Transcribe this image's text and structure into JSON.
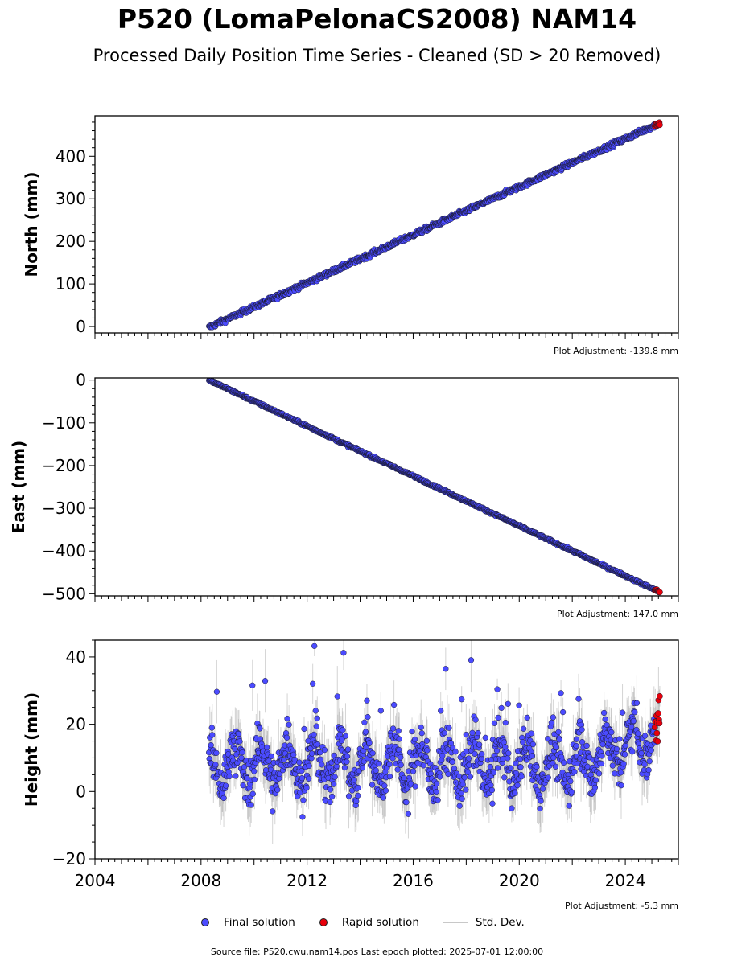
{
  "header": {
    "title": "P520 (LomaPelonaCS2008) NAM14",
    "subtitle": "Processed Daily Position Time Series - Cleaned (SD > 20 Removed)"
  },
  "legend": {
    "final_label": "Final solution",
    "rapid_label": "Rapid solution",
    "std_label": "Std. Dev."
  },
  "footer": {
    "source": "Source file: P520.cwu.nam14.pos  Last epoch plotted: 2025-07-01 12:00:00"
  },
  "colors": {
    "final": "#4b4bff",
    "rapid": "#e8000b",
    "std": "#b0b0b0",
    "edge": "#1a1a2e"
  },
  "chart_data": [
    {
      "type": "scatter",
      "ylabel": "North (mm)",
      "adjustment": "Plot Adjustment: -139.8 mm",
      "xlim": [
        2004,
        2026
      ],
      "ylim": [
        -15,
        495
      ],
      "yticks": [
        0,
        100,
        200,
        300,
        400
      ],
      "start_year": 2008.3,
      "end_year": 2025.3,
      "start_value": -2,
      "end_value": 478,
      "scatter": 4,
      "rapid_start": 2025.1
    },
    {
      "type": "scatter",
      "ylabel": "East (mm)",
      "adjustment": "Plot Adjustment: 147.0 mm",
      "xlim": [
        2004,
        2026
      ],
      "ylim": [
        -505,
        5
      ],
      "yticks": [
        0,
        -100,
        -200,
        -300,
        -400,
        -500
      ],
      "start_year": 2008.3,
      "end_year": 2025.3,
      "start_value": 0,
      "end_value": -496,
      "scatter": 2,
      "rapid_start": 2025.1
    },
    {
      "type": "scatter",
      "ylabel": "Height (mm)",
      "adjustment": "Plot Adjustment: -5.3 mm",
      "xlim": [
        2004,
        2026
      ],
      "ylim": [
        -20,
        45
      ],
      "yticks": [
        -20,
        0,
        20,
        40
      ],
      "xticks": [
        2004,
        2008,
        2012,
        2016,
        2020,
        2024
      ],
      "start_year": 2008.3,
      "end_year": 2025.3,
      "start_value": 8,
      "end_value": 18,
      "scatter": 7,
      "rapid_start": 2025.1
    }
  ]
}
